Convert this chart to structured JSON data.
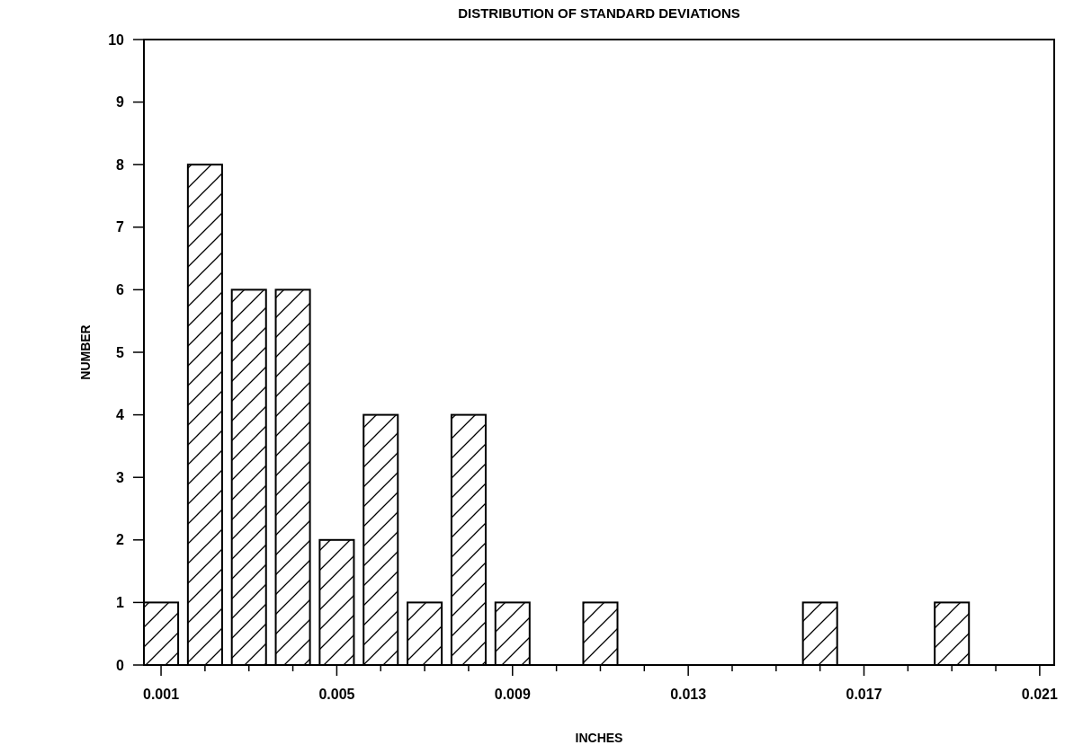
{
  "chart_data": {
    "type": "bar",
    "title": "DISTRIBUTION OF STANDARD DEVIATIONS",
    "xlabel": "INCHES",
    "ylabel": "NUMBER",
    "x": [
      0.001,
      0.002,
      0.003,
      0.004,
      0.005,
      0.006,
      0.007,
      0.008,
      0.009,
      0.011,
      0.016,
      0.019
    ],
    "values": [
      1,
      8,
      6,
      6,
      2,
      4,
      1,
      4,
      1,
      1,
      1,
      1
    ],
    "color": "#000000",
    "xlim": [
      0.00061,
      0.02133
    ],
    "xticks": [
      0.001,
      {
        "value": 0.002,
        "label": null
      },
      {
        "value": 0.003,
        "label": null
      },
      {
        "value": 0.004,
        "label": null
      },
      0.005,
      {
        "value": 0.006,
        "label": null
      },
      {
        "value": 0.007,
        "label": null
      },
      {
        "value": 0.008,
        "label": null
      },
      0.009,
      {
        "value": 0.01,
        "label": null
      },
      {
        "value": 0.011,
        "label": null
      },
      {
        "value": 0.012,
        "label": null
      },
      0.013,
      {
        "value": 0.014,
        "label": null
      },
      {
        "value": 0.015,
        "label": null
      },
      {
        "value": 0.016,
        "label": null
      },
      0.017,
      {
        "value": 0.018,
        "label": null
      },
      {
        "value": 0.019,
        "label": null
      },
      {
        "value": 0.02,
        "label": null
      },
      0.021
    ],
    "ylim": [
      0,
      10
    ],
    "yticks": [
      0,
      1,
      2,
      3,
      4,
      5,
      6,
      7,
      8,
      9,
      10
    ],
    "grid": false
  }
}
